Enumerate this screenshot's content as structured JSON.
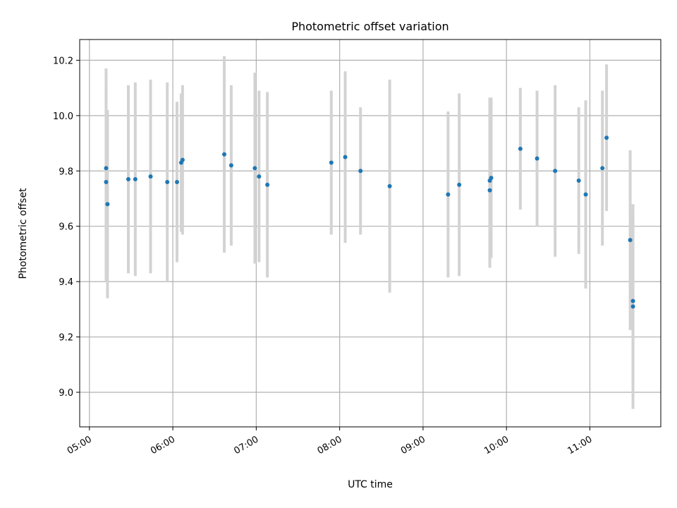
{
  "chart_data": {
    "type": "scatter",
    "title": "Photometric offset variation",
    "xlabel": "UTC time",
    "ylabel": "Photometric offset",
    "xlim": [
      "04:53",
      "11:51"
    ],
    "ylim": [
      8.875,
      10.275
    ],
    "x_ticks": [
      "05:00",
      "06:00",
      "07:00",
      "08:00",
      "09:00",
      "10:00",
      "11:00"
    ],
    "y_ticks": [
      "9.0",
      "9.2",
      "9.4",
      "9.6",
      "9.8",
      "10.0",
      "10.2"
    ],
    "grid": true,
    "colors": {
      "marker": "#1f77b4",
      "errorbar": "#d3d3d3",
      "grid": "#b0b0b0"
    },
    "points": [
      {
        "time": "05:12",
        "y": 9.81,
        "err": 0.36
      },
      {
        "time": "05:12",
        "y": 9.76,
        "err": 0.36
      },
      {
        "time": "05:13",
        "y": 9.68,
        "err": 0.34
      },
      {
        "time": "05:28",
        "y": 9.77,
        "err": 0.34
      },
      {
        "time": "05:33",
        "y": 9.77,
        "err": 0.35
      },
      {
        "time": "05:44",
        "y": 9.78,
        "err": 0.35
      },
      {
        "time": "05:56",
        "y": 9.76,
        "err": 0.36
      },
      {
        "time": "06:03",
        "y": 9.76,
        "err": 0.29
      },
      {
        "time": "06:06",
        "y": 9.83,
        "err": 0.25
      },
      {
        "time": "06:07",
        "y": 9.84,
        "err": 0.27
      },
      {
        "time": "06:37",
        "y": 9.86,
        "err": 0.355
      },
      {
        "time": "06:42",
        "y": 9.82,
        "err": 0.29
      },
      {
        "time": "06:59",
        "y": 9.81,
        "err": 0.345
      },
      {
        "time": "07:02",
        "y": 9.78,
        "err": 0.31
      },
      {
        "time": "07:08",
        "y": 9.75,
        "err": 0.335
      },
      {
        "time": "07:54",
        "y": 9.83,
        "err": 0.26
      },
      {
        "time": "08:04",
        "y": 9.85,
        "err": 0.31
      },
      {
        "time": "08:15",
        "y": 9.8,
        "err": 0.23
      },
      {
        "time": "08:36",
        "y": 9.745,
        "err": 0.385
      },
      {
        "time": "09:18",
        "y": 9.715,
        "err": 0.3
      },
      {
        "time": "09:26",
        "y": 9.75,
        "err": 0.33
      },
      {
        "time": "09:48",
        "y": 9.73,
        "err": 0.28
      },
      {
        "time": "09:48",
        "y": 9.765,
        "err": 0.3
      },
      {
        "time": "09:49",
        "y": 9.775,
        "err": 0.29
      },
      {
        "time": "10:10",
        "y": 9.88,
        "err": 0.22
      },
      {
        "time": "10:22",
        "y": 9.845,
        "err": 0.245
      },
      {
        "time": "10:35",
        "y": 9.8,
        "err": 0.31
      },
      {
        "time": "10:52",
        "y": 9.765,
        "err": 0.265
      },
      {
        "time": "10:57",
        "y": 9.715,
        "err": 0.34
      },
      {
        "time": "11:09",
        "y": 9.81,
        "err": 0.28
      },
      {
        "time": "11:12",
        "y": 9.92,
        "err": 0.265
      },
      {
        "time": "11:29",
        "y": 9.55,
        "err": 0.325
      },
      {
        "time": "11:31",
        "y": 9.33,
        "err": 0.295
      },
      {
        "time": "11:31",
        "y": 9.31,
        "err": 0.37
      }
    ]
  }
}
